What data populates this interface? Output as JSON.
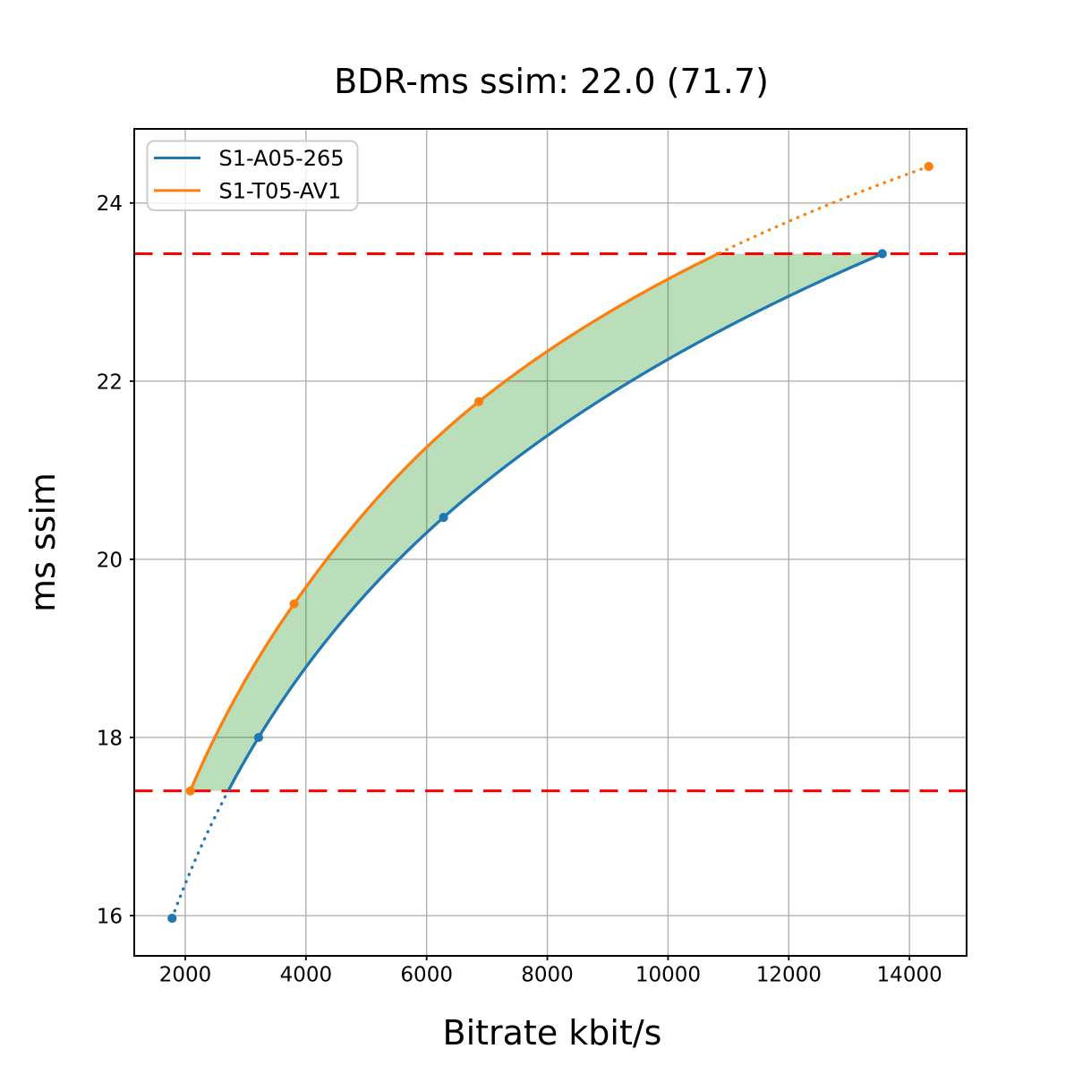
{
  "chart_data": {
    "type": "line",
    "title": "BDR-ms ssim: 22.0 (71.7)",
    "xlabel": "Bitrate kbit/s",
    "ylabel": "ms ssim",
    "xlim": [
      1155,
      14947
    ],
    "ylim": [
      15.548,
      24.832
    ],
    "xticks": [
      2000,
      4000,
      6000,
      8000,
      10000,
      12000,
      14000
    ],
    "yticks": [
      16,
      18,
      20,
      22,
      24
    ],
    "grid": true,
    "grid_color": "#b0b0b0",
    "spine_color": "#000000",
    "background": "#ffffff",
    "legend": {
      "position": "upper left"
    },
    "series": [
      {
        "name": "S1-A05-265",
        "color": "#1f77b4",
        "x": [
          1782,
          3215,
          6280,
          13550
        ],
        "y": [
          15.97,
          18.0,
          20.47,
          23.43
        ]
      },
      {
        "name": "S1-T05-AV1",
        "color": "#ff7f0e",
        "x": [
          2084,
          3803,
          6865,
          14320
        ],
        "y": [
          17.4,
          19.5,
          21.77,
          24.41
        ]
      }
    ],
    "overlap_lines": {
      "color": "#ff0000",
      "y_low": 17.4,
      "y_high": 23.43,
      "style": "dashed"
    },
    "fill_between": {
      "color": "#008000",
      "opacity": 0.27
    }
  }
}
